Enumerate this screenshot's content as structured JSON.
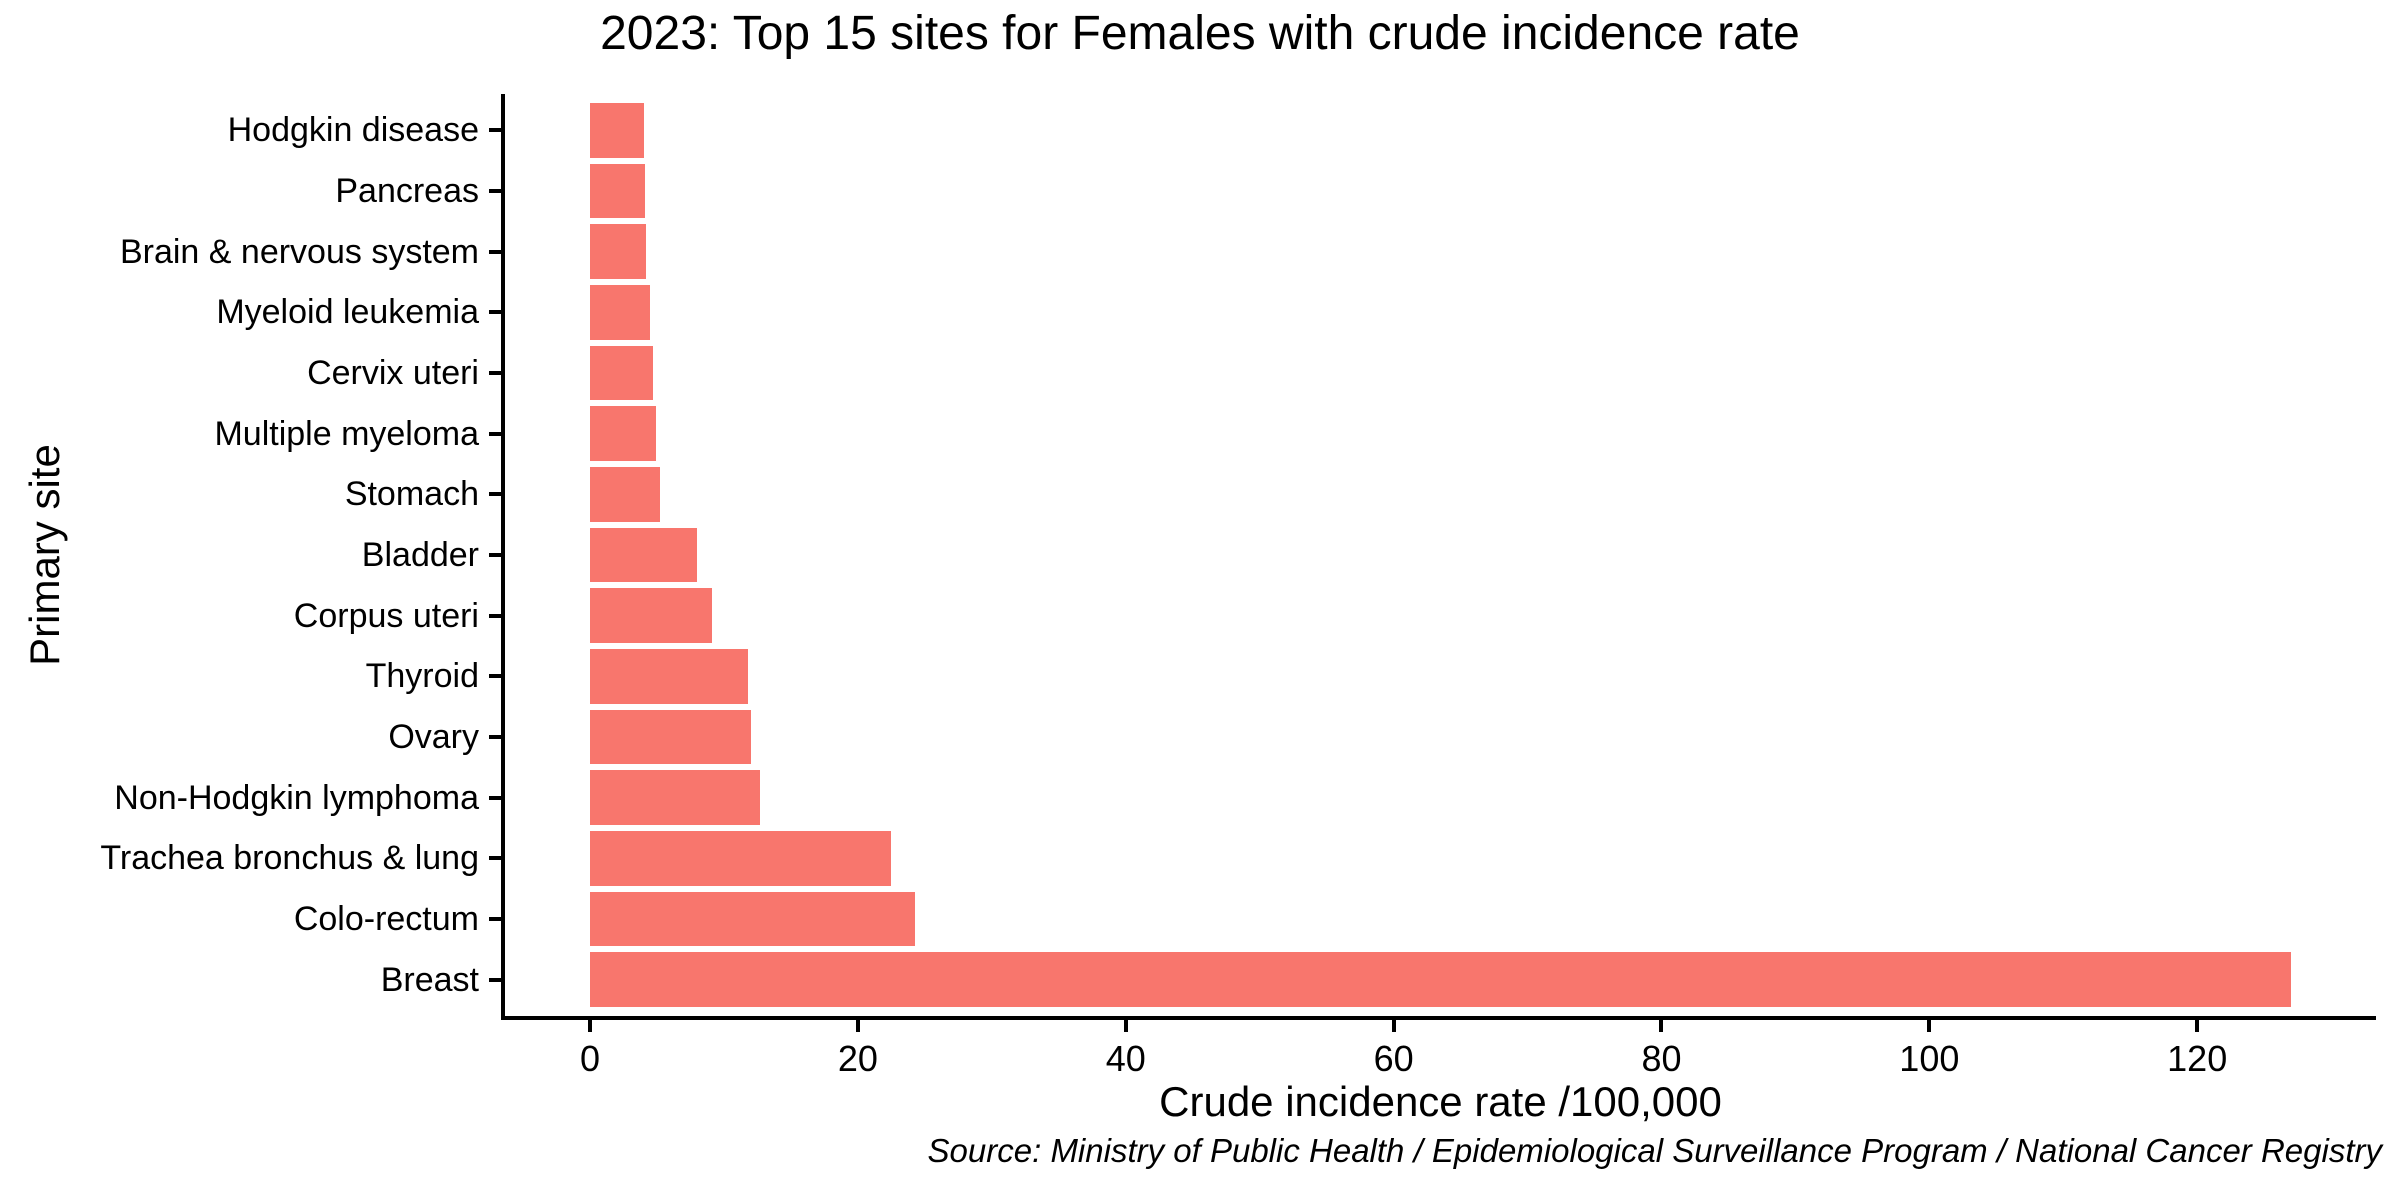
{
  "figure": {
    "title": "2023: Top 15 sites for Females with crude incidence rate",
    "source_note": "Source: Ministry of Public Health / Epidemiological Surveillance Program / National Cancer Registry"
  },
  "chart_data": {
    "type": "bar",
    "orientation": "horizontal",
    "title": "2023: Top 15 sites for Females with crude incidence rate",
    "xlabel": "Crude incidence rate /100,000",
    "ylabel": "Primary site",
    "categories": [
      "Hodgkin disease",
      "Pancreas",
      "Brain & nervous system",
      "Myeloid leukemia",
      "Cervix uteri",
      "Multiple myeloma",
      "Stomach",
      "Bladder",
      "Corpus uteri",
      "Thyroid",
      "Ovary",
      "Non-Hodgkin lymphoma",
      "Trachea bronchus & lung",
      "Colo-rectum",
      "Breast"
    ],
    "category_order": "top to bottom, ascending value",
    "values": [
      4.0,
      4.1,
      4.2,
      4.5,
      4.7,
      4.9,
      5.2,
      8.0,
      9.1,
      11.8,
      12.0,
      12.7,
      22.5,
      24.3,
      127.0
    ],
    "x_ticks": [
      0,
      20,
      40,
      60,
      80,
      100,
      120
    ],
    "xlim": [
      -6.35,
      133.35
    ],
    "grid": false,
    "legend": "none",
    "bar_color": "#F8766D",
    "axis_color": "#000000",
    "text_color": "#000000",
    "background_color": "#FFFFFF",
    "bar_width_fraction": 0.9,
    "categorical_expansion": 0.6
  }
}
